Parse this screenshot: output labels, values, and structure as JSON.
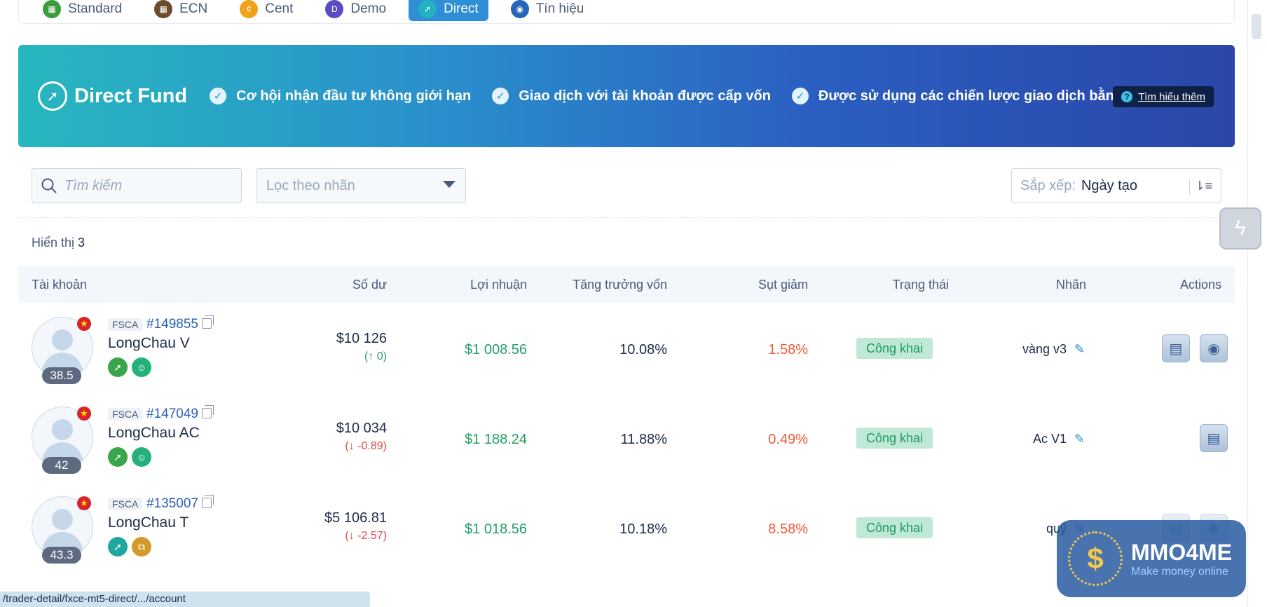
{
  "tabs": [
    {
      "label": "Standard",
      "color": "#3a9c3a"
    },
    {
      "label": "ECN",
      "color": "#6b4d2e"
    },
    {
      "label": "Cent",
      "color": "#f0a21a"
    },
    {
      "label": "Demo",
      "color": "#5a4cc4"
    },
    {
      "label": "Direct",
      "color": "#ffffff",
      "active": true
    },
    {
      "label": "Tín hiệu",
      "color": "#2466b8"
    }
  ],
  "banner": {
    "title": "Direct Fund",
    "features": [
      "Cơ hội nhận đầu tư không giới hạn",
      "Giao dịch với tài khoản được cấp vốn",
      "Được sử dụng các chiến lược giao dịch bằng EA"
    ],
    "learn_more": "Tìm hiểu thêm"
  },
  "filters": {
    "search_placeholder": "Tìm kiếm",
    "label_filter_placeholder": "Lọc theo nhãn",
    "sort_label": "Sắp xếp:",
    "sort_value": "Ngày tạo"
  },
  "count": {
    "label": "Hiển thị",
    "value": "3"
  },
  "table": {
    "headers": [
      "Tài khoản",
      "Số dư",
      "Lợi nhuận",
      "Tăng trưởng vốn",
      "Sụt giảm",
      "Trạng thái",
      "Nhãn",
      "Actions"
    ],
    "rows": [
      {
        "broker": "FSCA",
        "id": "#149855",
        "name": "LongChau V",
        "score": "38.5",
        "balance": "$10 126",
        "delta": "(↑ 0)",
        "delta_dir": "up",
        "profit": "$1 008.56",
        "growth": "10.08%",
        "drawdown": "1.58%",
        "status": "Công khai",
        "tag": "vàng v3",
        "actions": [
          "report",
          "signal"
        ]
      },
      {
        "broker": "FSCA",
        "id": "#147049",
        "name": "LongChau AC",
        "score": "42",
        "balance": "$10 034",
        "delta": "(↓ -0.89)",
        "delta_dir": "down",
        "profit": "$1 188.24",
        "growth": "11.88%",
        "drawdown": "0.49%",
        "status": "Công khai",
        "tag": "Ac V1",
        "actions": [
          "report"
        ]
      },
      {
        "broker": "FSCA",
        "id": "#135007",
        "name": "LongChau T",
        "score": "43.3",
        "balance": "$5 106.81",
        "delta": "(↓ -2.57)",
        "delta_dir": "down",
        "profit": "$1 018.56",
        "growth": "10.18%",
        "drawdown": "8.58%",
        "status": "Công khai",
        "tag": "quỹ",
        "actions": [
          "report",
          "signal"
        ]
      }
    ]
  },
  "status_bar": "/trader-detail/fxce-mt5-direct/.../account",
  "watermark": {
    "title": "MMO4ME",
    "subtitle": "Make money online"
  }
}
